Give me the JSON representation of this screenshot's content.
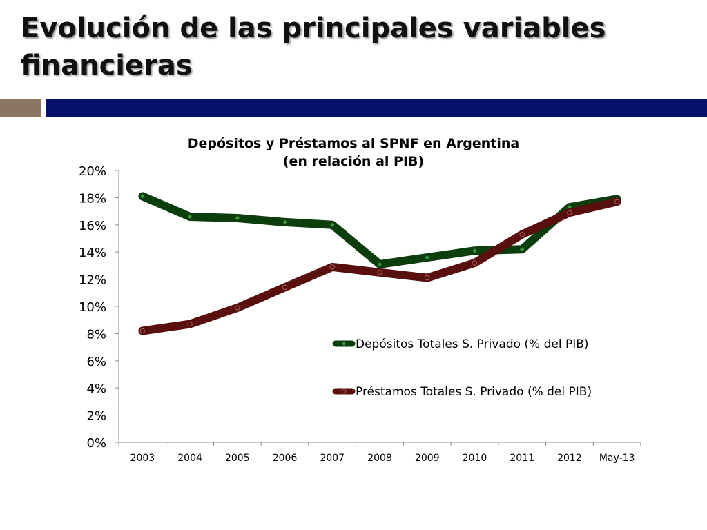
{
  "slide": {
    "title": "Evolución de las principales variables financieras"
  },
  "colors": {
    "depositos": "#0c3d0c",
    "prestamos": "#5a0f0f",
    "band_left": "#8b7662",
    "band_right": "#07116b"
  },
  "chart_data": {
    "type": "line",
    "title": "Depósitos y Préstamos al SPNF en Argentina",
    "subtitle": "(en relación al PIB)",
    "xlabel": "",
    "ylabel": "",
    "categories": [
      "2003",
      "2004",
      "2005",
      "2006",
      "2007",
      "2008",
      "2009",
      "2010",
      "2011",
      "2012",
      "May-13"
    ],
    "y_ticks": [
      "0%",
      "2%",
      "4%",
      "6%",
      "8%",
      "10%",
      "12%",
      "14%",
      "16%",
      "18%",
      "20%"
    ],
    "ylim": [
      0,
      20
    ],
    "grid": false,
    "legend_position": "right",
    "series": [
      {
        "name": "Depósitos Totales S. Privado (% del PIB)",
        "color": "#0c3d0c",
        "values": [
          18.1,
          16.6,
          16.5,
          16.2,
          16.0,
          13.1,
          13.6,
          14.1,
          14.2,
          17.3,
          17.9
        ]
      },
      {
        "name": "Préstamos Totales S. Privado (% del PIB)",
        "color": "#5a0f0f",
        "values": [
          8.2,
          8.7,
          9.9,
          11.4,
          12.9,
          12.5,
          12.1,
          13.2,
          15.3,
          16.9,
          17.7
        ]
      }
    ]
  }
}
